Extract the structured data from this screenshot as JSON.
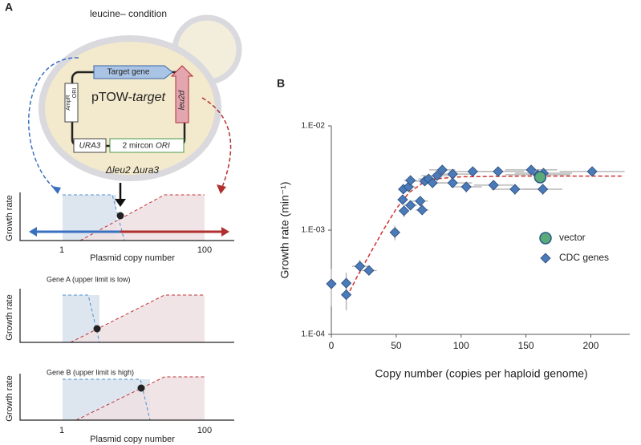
{
  "panel_a": {
    "label": "A",
    "condition": "leucine– condition",
    "plasmid": {
      "target_gene": "Target gene",
      "name": "pTOW-",
      "name_italic": "target",
      "ampr": "AmpR",
      "ori": "ORI",
      "leu2d": "leu2d",
      "ura3": "URA3",
      "two_micron": "2 mircon",
      "two_micron_ori": "ORI"
    },
    "strain": "Δleu2 Δura3",
    "plots": [
      {
        "ylabel": "Growth rate",
        "xtick_low": "1",
        "xtick_high": "100",
        "xlabel": "Plasmid copy number"
      },
      {
        "title": "Gene A (upper limit is low)",
        "ylabel": "Growth rate"
      },
      {
        "title": "Gene B (upper limit is high)",
        "ylabel": "Growth rate",
        "xtick_low": "1",
        "xtick_high": "100",
        "xlabel": "Plasmid copy number"
      }
    ]
  },
  "chart_data": {
    "type": "scatter",
    "label": "B",
    "xlabel": "Copy number (copies per haploid genome)",
    "ylabel": "Growth rate (min⁻¹)",
    "xlim": [
      0,
      230
    ],
    "xticks": [
      0,
      50,
      100,
      150,
      200
    ],
    "ylim": [
      0.0001,
      0.01
    ],
    "log_y": true,
    "yticks": [
      {
        "value": 0.0001,
        "label": "1.E-04"
      },
      {
        "value": 0.001,
        "label": "1.E-03"
      },
      {
        "value": 0.01,
        "label": "1.E-02"
      }
    ],
    "series": [
      {
        "name": "vector",
        "color": "#5aaa7a",
        "marker": "circle",
        "x": [
          161
        ],
        "values": [
          0.00322
        ]
      },
      {
        "name": "CDC genes",
        "color": "#4a7ab8",
        "marker": "diamond",
        "x": [
          0,
          11.5,
          11.5,
          22,
          29,
          49,
          56,
          55,
          55.5,
          59.5,
          61,
          61,
          68.5,
          70,
          72,
          75,
          78,
          81.5,
          85.5,
          93.5,
          93.5,
          104,
          109,
          125,
          128.5,
          141.5,
          154,
          159,
          163.5,
          163,
          201
        ],
        "values": [
          0.000305,
          0.00031,
          0.00024,
          0.00045,
          0.00041,
          0.00095,
          0.00153,
          0.00196,
          0.00247,
          0.0026,
          0.00173,
          0.003,
          0.0019,
          0.00156,
          0.00295,
          0.0031,
          0.00284,
          0.00333,
          0.00378,
          0.00345,
          0.00284,
          0.0026,
          0.00365,
          0.0027,
          0.00365,
          0.00247,
          0.00378,
          0.0034,
          0.00352,
          0.00247,
          0.00365
        ],
        "x_err": [
          0,
          3,
          3,
          6,
          6,
          4,
          4,
          4,
          4,
          5,
          5,
          5,
          6,
          5,
          8,
          8,
          10,
          12,
          10,
          15,
          15,
          12,
          18,
          15,
          20,
          18,
          20,
          25,
          22,
          15,
          25
        ],
        "y_err": [
          0.00012,
          8e-05,
          7e-05,
          7e-05,
          4e-05,
          0.00015,
          0.0002,
          0.0002,
          0.00025,
          0.0002,
          0.00015,
          0.0003,
          0.0002,
          0.00015,
          0.0003,
          0.0003,
          0.0003,
          0.0003,
          0.0003,
          0.0003,
          0.0003,
          0.0003,
          0.0003,
          0.0003,
          0.0003,
          0.0003,
          0.0003,
          0.0003,
          0.0003,
          0.0003,
          0.0003
        ]
      }
    ],
    "fit": {
      "color": "#d03030",
      "x": [
        12,
        20,
        30,
        40,
        50,
        60,
        70,
        80,
        100,
        150,
        225
      ],
      "values": [
        0.00023,
        0.00036,
        0.0006,
        0.001,
        0.0016,
        0.0023,
        0.0028,
        0.0031,
        0.00325,
        0.0033,
        0.0033
      ]
    }
  }
}
